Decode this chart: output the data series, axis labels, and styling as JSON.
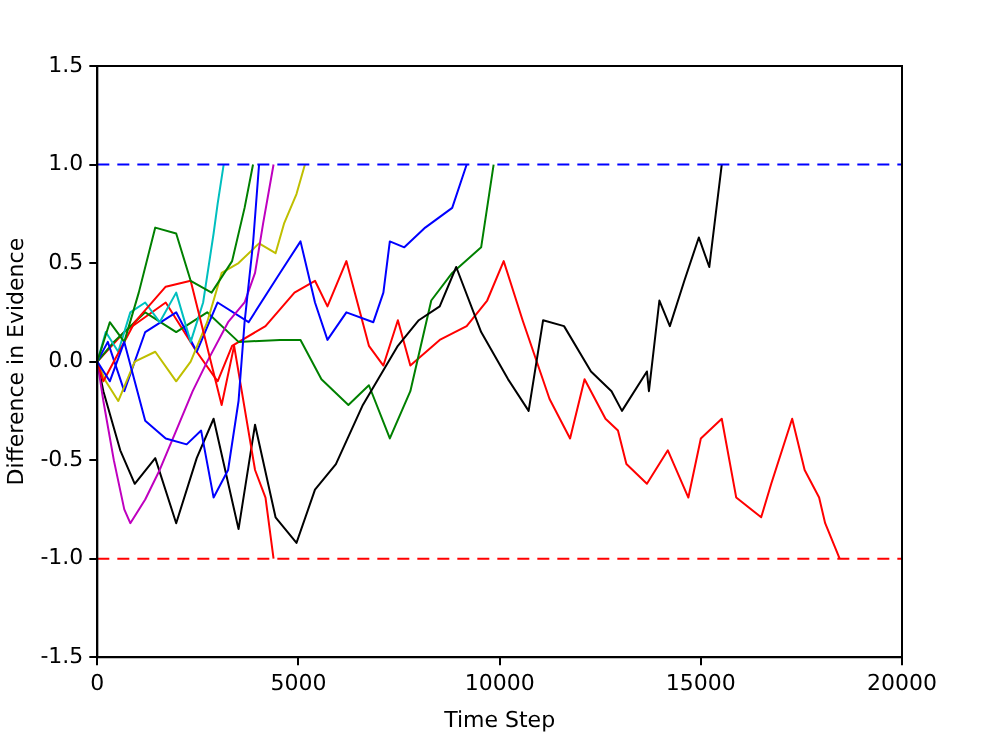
{
  "chart_data": {
    "type": "line",
    "xlabel": "Time Step",
    "ylabel": "Difference in Evidence",
    "xlim": [
      0,
      20000
    ],
    "xticks": [
      0,
      5000,
      10000,
      15000,
      20000
    ],
    "ylim": [
      -1.5,
      1.5
    ],
    "yticks": [
      {
        "value": -1.5,
        "label": "-1.5"
      },
      {
        "value": -1,
        "label": "-1.0"
      },
      {
        "value": -0.5,
        "label": "-0.5"
      },
      {
        "value": 0,
        "label": "0.0"
      },
      {
        "value": 0.5,
        "label": "0.5"
      },
      {
        "value": 1,
        "label": "1.0"
      },
      {
        "value": 1.5,
        "label": "1.5"
      }
    ],
    "grid": false,
    "legend": false,
    "marker": "none",
    "line_style": "solid",
    "ref_lines": [
      {
        "axis": "y",
        "value": 1,
        "color": "#0000ff",
        "line_style": "dashed"
      },
      {
        "axis": "y",
        "value": -1,
        "color": "#ff0000",
        "line_style": "dashed"
      }
    ],
    "series": [
      {
        "color": "#0000ff",
        "x": [
          0,
          310,
          670,
          1190,
          1700,
          2220,
          2580,
          2890,
          3250,
          3510,
          3660,
          3870,
          4020
        ],
        "values": [
          0,
          -0.1,
          0.1,
          -0.3,
          -0.39,
          -0.42,
          -0.35,
          -0.69,
          -0.55,
          -0.2,
          0.2,
          0.6,
          1.0
        ]
      },
      {
        "color": "#008000",
        "x": [
          0,
          310,
          670,
          1030,
          1440,
          1960,
          2320,
          2840,
          3350,
          3660,
          3870
        ],
        "values": [
          0,
          0.2,
          0.1,
          0.35,
          0.68,
          0.65,
          0.41,
          0.35,
          0.51,
          0.78,
          1.0
        ]
      },
      {
        "color": "#ff0000",
        "x": [
          0,
          150,
          930,
          1700,
          2320,
          3090,
          3400,
          3920,
          4180,
          4380
        ],
        "values": [
          0,
          -0.1,
          0.2,
          0.38,
          0.41,
          -0.22,
          0.08,
          -0.55,
          -0.69,
          -1.0
        ]
      },
      {
        "color": "#00bfbf",
        "x": [
          0,
          210,
          520,
          820,
          1190,
          1550,
          1960,
          2320,
          2630,
          2890,
          2990,
          3140
        ],
        "values": [
          0,
          0.15,
          0.05,
          0.25,
          0.3,
          0.2,
          0.35,
          0.1,
          0.3,
          0.65,
          0.8,
          1.0
        ]
      },
      {
        "color": "#bf00bf",
        "x": [
          0,
          150,
          410,
          670,
          820,
          1190,
          1550,
          1960,
          2370,
          2730,
          3250,
          3660,
          3920,
          4120,
          4380
        ],
        "values": [
          0,
          -0.2,
          -0.5,
          -0.75,
          -0.82,
          -0.7,
          -0.55,
          -0.35,
          -0.15,
          0,
          0.2,
          0.3,
          0.45,
          0.7,
          1.0
        ]
      },
      {
        "color": "#bfbf00",
        "x": [
          0,
          210,
          520,
          930,
          1440,
          1960,
          2320,
          2730,
          3090,
          3510,
          4020,
          4430,
          4640,
          4950,
          5160
        ],
        "values": [
          0,
          -0.1,
          -0.2,
          0,
          0.05,
          -0.1,
          0,
          0.2,
          0.45,
          0.5,
          0.6,
          0.55,
          0.7,
          0.85,
          1.0
        ]
      },
      {
        "color": "#000000",
        "x": [
          0,
          150,
          570,
          930,
          1440,
          1960,
          2470,
          2890,
          3510,
          3920,
          4430,
          4950,
          5410,
          5930,
          6600,
          7470,
          7990,
          8510,
          8920,
          9540,
          10210,
          10720,
          11080,
          11600,
          12270,
          12780,
          13040,
          13660,
          13710,
          13970,
          14230,
          14590,
          14950,
          15210,
          15520
        ],
        "values": [
          0,
          -0.15,
          -0.45,
          -0.62,
          -0.49,
          -0.82,
          -0.49,
          -0.29,
          -0.85,
          -0.32,
          -0.79,
          -0.92,
          -0.65,
          -0.52,
          -0.22,
          0.08,
          0.21,
          0.28,
          0.48,
          0.15,
          -0.09,
          -0.25,
          0.21,
          0.18,
          -0.05,
          -0.15,
          -0.25,
          -0.05,
          -0.15,
          0.31,
          0.18,
          0.41,
          0.63,
          0.48,
          1.0
        ]
      },
      {
        "color": "#0000ff",
        "x": [
          0,
          260,
          670,
          1190,
          1960,
          2470,
          2990,
          3760,
          4540,
          5050,
          5410,
          5720,
          6190,
          6860,
          7110,
          7270,
          7630,
          8150,
          8820,
          9180
        ],
        "values": [
          0,
          0.1,
          -0.15,
          0.15,
          0.25,
          0.05,
          0.3,
          0.2,
          0.45,
          0.61,
          0.3,
          0.11,
          0.25,
          0.2,
          0.35,
          0.61,
          0.58,
          0.68,
          0.78,
          1.0
        ]
      },
      {
        "color": "#008000",
        "x": [
          0,
          410,
          1190,
          1960,
          2730,
          3510,
          4540,
          5050,
          5570,
          6240,
          6750,
          7270,
          7780,
          8300,
          8820,
          9540,
          9850
        ],
        "values": [
          0,
          0.1,
          0.25,
          0.15,
          0.25,
          0.1,
          0.11,
          0.11,
          -0.09,
          -0.22,
          -0.12,
          -0.39,
          -0.15,
          0.31,
          0.45,
          0.58,
          1.0
        ]
      },
      {
        "color": "#ff0000",
        "x": [
          0,
          670,
          1700,
          2470,
          2990,
          3350,
          4180,
          4900,
          5410,
          5720,
          6190,
          6750,
          7110,
          7470,
          7780,
          8510,
          9180,
          9690,
          10100,
          10570,
          11240,
          11750,
          12110,
          12630,
          12940,
          13150,
          13660,
          14180,
          14690,
          15000,
          15520,
          15880,
          16500,
          16750,
          17270,
          17580,
          17940,
          18090,
          18450
        ],
        "values": [
          0,
          0.15,
          0.3,
          0.05,
          -0.1,
          0.08,
          0.18,
          0.35,
          0.41,
          0.28,
          0.51,
          0.08,
          -0.02,
          0.21,
          -0.02,
          0.11,
          0.18,
          0.31,
          0.51,
          0.21,
          -0.19,
          -0.39,
          -0.09,
          -0.29,
          -0.35,
          -0.52,
          -0.62,
          -0.45,
          -0.69,
          -0.39,
          -0.29,
          -0.69,
          -0.79,
          -0.62,
          -0.29,
          -0.55,
          -0.69,
          -0.82,
          -1.0
        ]
      }
    ]
  }
}
